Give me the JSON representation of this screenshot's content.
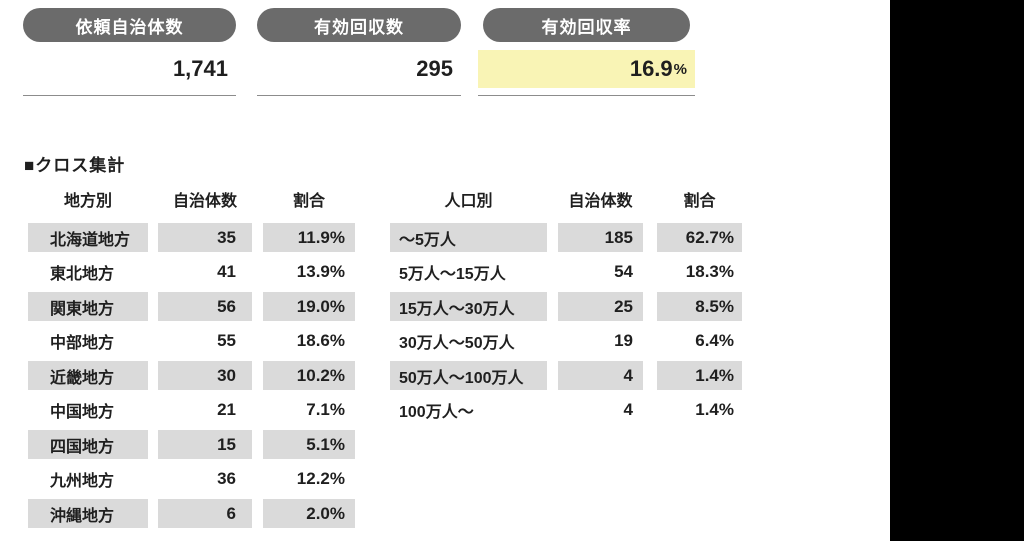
{
  "summary": {
    "items": [
      {
        "label": "依頼自治体数",
        "value": "1,741",
        "unit": ""
      },
      {
        "label": "有効回収数",
        "value": "295",
        "unit": ""
      },
      {
        "label": "有効回収率",
        "value": "16.9",
        "unit": "%"
      }
    ]
  },
  "section": {
    "title": "■クロス集計"
  },
  "region_table": {
    "headers": {
      "col1": "地方別",
      "col2": "自治体数",
      "col3": "割合"
    },
    "rows": [
      {
        "label": "北海道地方",
        "count": "35",
        "pct": "11.9%"
      },
      {
        "label": "東北地方",
        "count": "41",
        "pct": "13.9%"
      },
      {
        "label": "関東地方",
        "count": "56",
        "pct": "19.0%"
      },
      {
        "label": "中部地方",
        "count": "55",
        "pct": "18.6%"
      },
      {
        "label": "近畿地方",
        "count": "30",
        "pct": "10.2%"
      },
      {
        "label": "中国地方",
        "count": "21",
        "pct": "7.1%"
      },
      {
        "label": "四国地方",
        "count": "15",
        "pct": "5.1%"
      },
      {
        "label": "九州地方",
        "count": "36",
        "pct": "12.2%"
      },
      {
        "label": "沖縄地方",
        "count": "6",
        "pct": "2.0%"
      }
    ]
  },
  "population_table": {
    "headers": {
      "col1": "人口別",
      "col2": "自治体数",
      "col3": "割合"
    },
    "rows": [
      {
        "label": "〜5万人",
        "count": "185",
        "pct": "62.7%"
      },
      {
        "label": "5万人〜15万人",
        "count": "54",
        "pct": "18.3%"
      },
      {
        "label": "15万人〜30万人",
        "count": "25",
        "pct": "8.5%"
      },
      {
        "label": "30万人〜50万人",
        "count": "19",
        "pct": "6.4%"
      },
      {
        "label": "50万人〜100万人",
        "count": "4",
        "pct": "1.4%"
      },
      {
        "label": "100万人〜",
        "count": "4",
        "pct": "1.4%"
      }
    ]
  },
  "colors": {
    "pill_bg": "#6b6b6b",
    "highlight_bg": "#f9f4b5",
    "row_bg": "#dadada",
    "underline": "#8c8c8c",
    "text": "#1f1f1f",
    "right_mask": "#000000"
  }
}
